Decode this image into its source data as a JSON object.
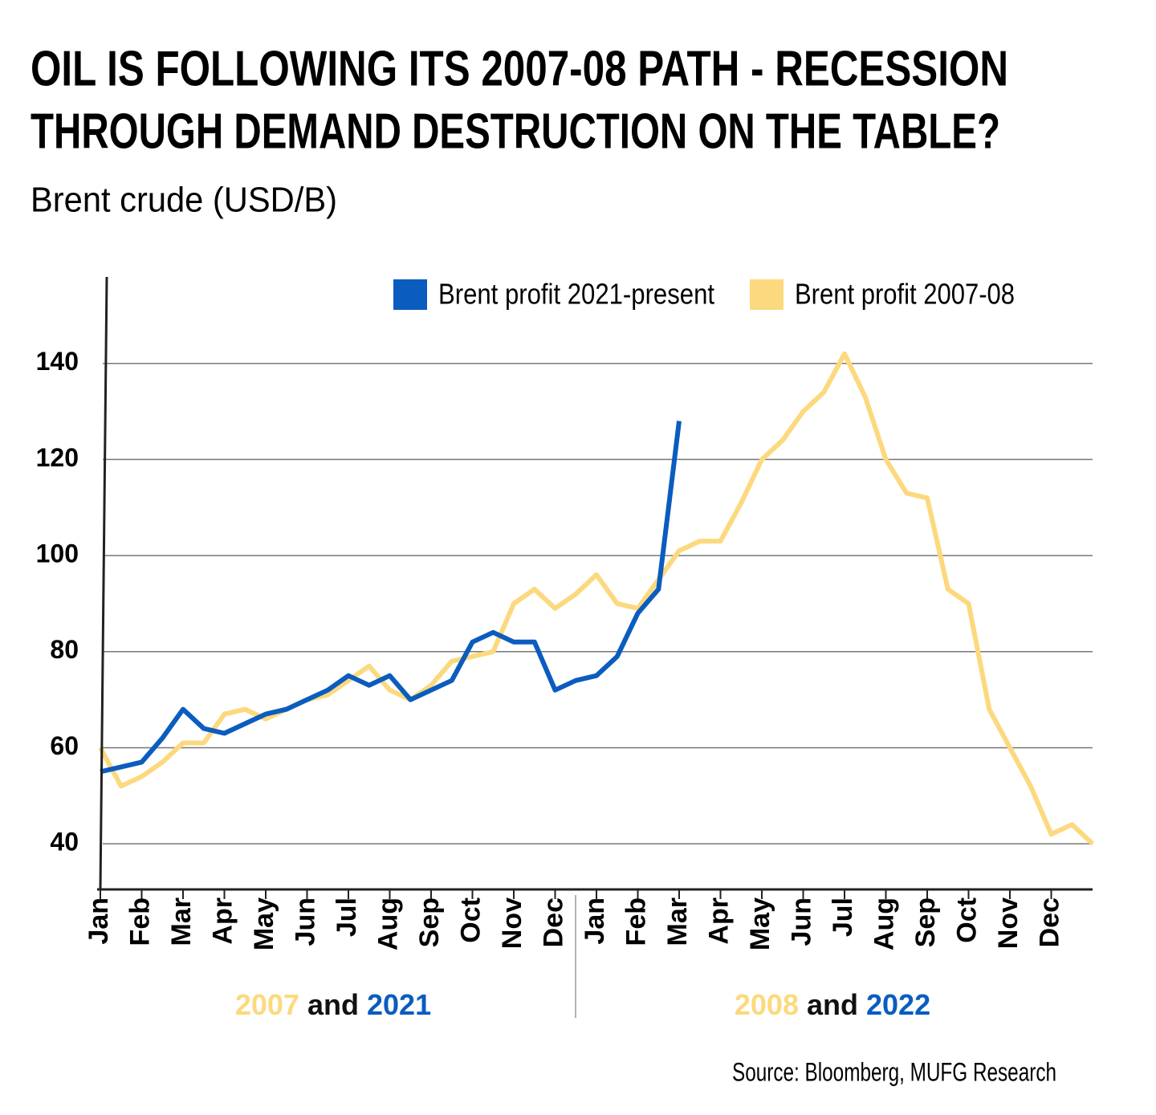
{
  "chart_data": {
    "type": "line",
    "title": [
      "OIL IS FOLLOWING ITS 2007-08 PATH - RECESSION",
      "THROUGH DEMAND DESTRUCTION ON THE TABLE?"
    ],
    "subtitle": "Brent crude (USD/B)",
    "source": "Source: Bloomberg, MUFG Research",
    "categories": [
      "Jan",
      null,
      "Feb",
      null,
      "Mar",
      null,
      "Apr",
      null,
      "May",
      null,
      "Jun",
      null,
      "Jul",
      null,
      "Aug",
      null,
      "Sep",
      null,
      "Oct",
      null,
      "Nov",
      null,
      "Dec",
      null,
      "Jan",
      null,
      "Feb",
      null,
      "Mar",
      null,
      "Apr",
      null,
      "May",
      null,
      "Jun",
      null,
      "Jul",
      null,
      "Aug",
      null,
      "Sep",
      null,
      "Oct",
      null,
      "Nov",
      null,
      "Dec",
      null,
      null
    ],
    "x_groups": [
      {
        "first": "2007",
        "and": "and",
        "second": "2021"
      },
      {
        "first": "2008",
        "and": "and",
        "second": "2022"
      }
    ],
    "ylim": [
      30.5,
      158
    ],
    "yticks": [
      40,
      60,
      80,
      100,
      120,
      140
    ],
    "grid": true,
    "series": [
      {
        "name": "Brent profit 2021-present",
        "color": "#0b5cbf",
        "values": [
          55,
          56,
          57,
          62,
          68,
          64,
          63,
          65,
          67,
          68,
          70,
          72,
          75,
          73,
          75,
          70,
          72,
          74,
          82,
          84,
          82,
          82,
          72,
          74,
          75,
          79,
          88,
          93,
          128,
          null,
          null,
          null,
          null,
          null,
          null,
          null,
          null,
          null,
          null,
          null,
          null,
          null,
          null,
          null,
          null,
          null,
          null,
          null,
          null
        ]
      },
      {
        "name": "Brent profit 2007-08",
        "color": "#fcd97e",
        "values": [
          60,
          52,
          54,
          57,
          61,
          61,
          67,
          68,
          66,
          68,
          70,
          71,
          74,
          77,
          72,
          70,
          73,
          78,
          79,
          80,
          90,
          93,
          89,
          92,
          96,
          90,
          89,
          95,
          101,
          103,
          103,
          111,
          120,
          124,
          130,
          134,
          142,
          133,
          120,
          113,
          112,
          93,
          90,
          68,
          60,
          52,
          42,
          44,
          40
        ]
      }
    ]
  }
}
